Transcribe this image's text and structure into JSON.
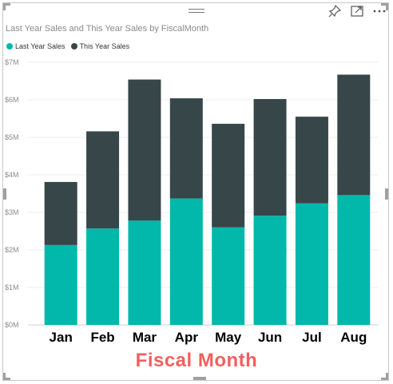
{
  "visual": {
    "title": "Last Year Sales and This Year Sales by FiscalMonth",
    "icons": [
      "pin-icon",
      "focus-mode-icon",
      "more-options-icon"
    ]
  },
  "chart_data": {
    "type": "bar",
    "stacked": true,
    "title": "Last Year Sales and This Year Sales by FiscalMonth",
    "xlabel": "Fiscal Month",
    "ylabel": "",
    "categories": [
      "Jan",
      "Feb",
      "Mar",
      "Apr",
      "May",
      "Jun",
      "Jul",
      "Aug"
    ],
    "series": [
      {
        "name": "Last Year Sales",
        "color": "#01b8aa",
        "values": [
          2.13,
          2.57,
          2.78,
          3.37,
          2.6,
          2.91,
          3.24,
          3.46
        ]
      },
      {
        "name": "This Year Sales",
        "color": "#374649",
        "values": [
          1.68,
          2.59,
          3.76,
          2.67,
          2.76,
          3.11,
          2.31,
          3.21
        ]
      }
    ],
    "yticks": [
      "$0M",
      "$1M",
      "$2M",
      "$3M",
      "$4M",
      "$5M",
      "$6M",
      "$7M"
    ],
    "ylim": [
      0,
      7
    ],
    "yunit": "$M",
    "grid": true,
    "legend_position": "top-left",
    "xlabel_color": "#f2605f"
  }
}
